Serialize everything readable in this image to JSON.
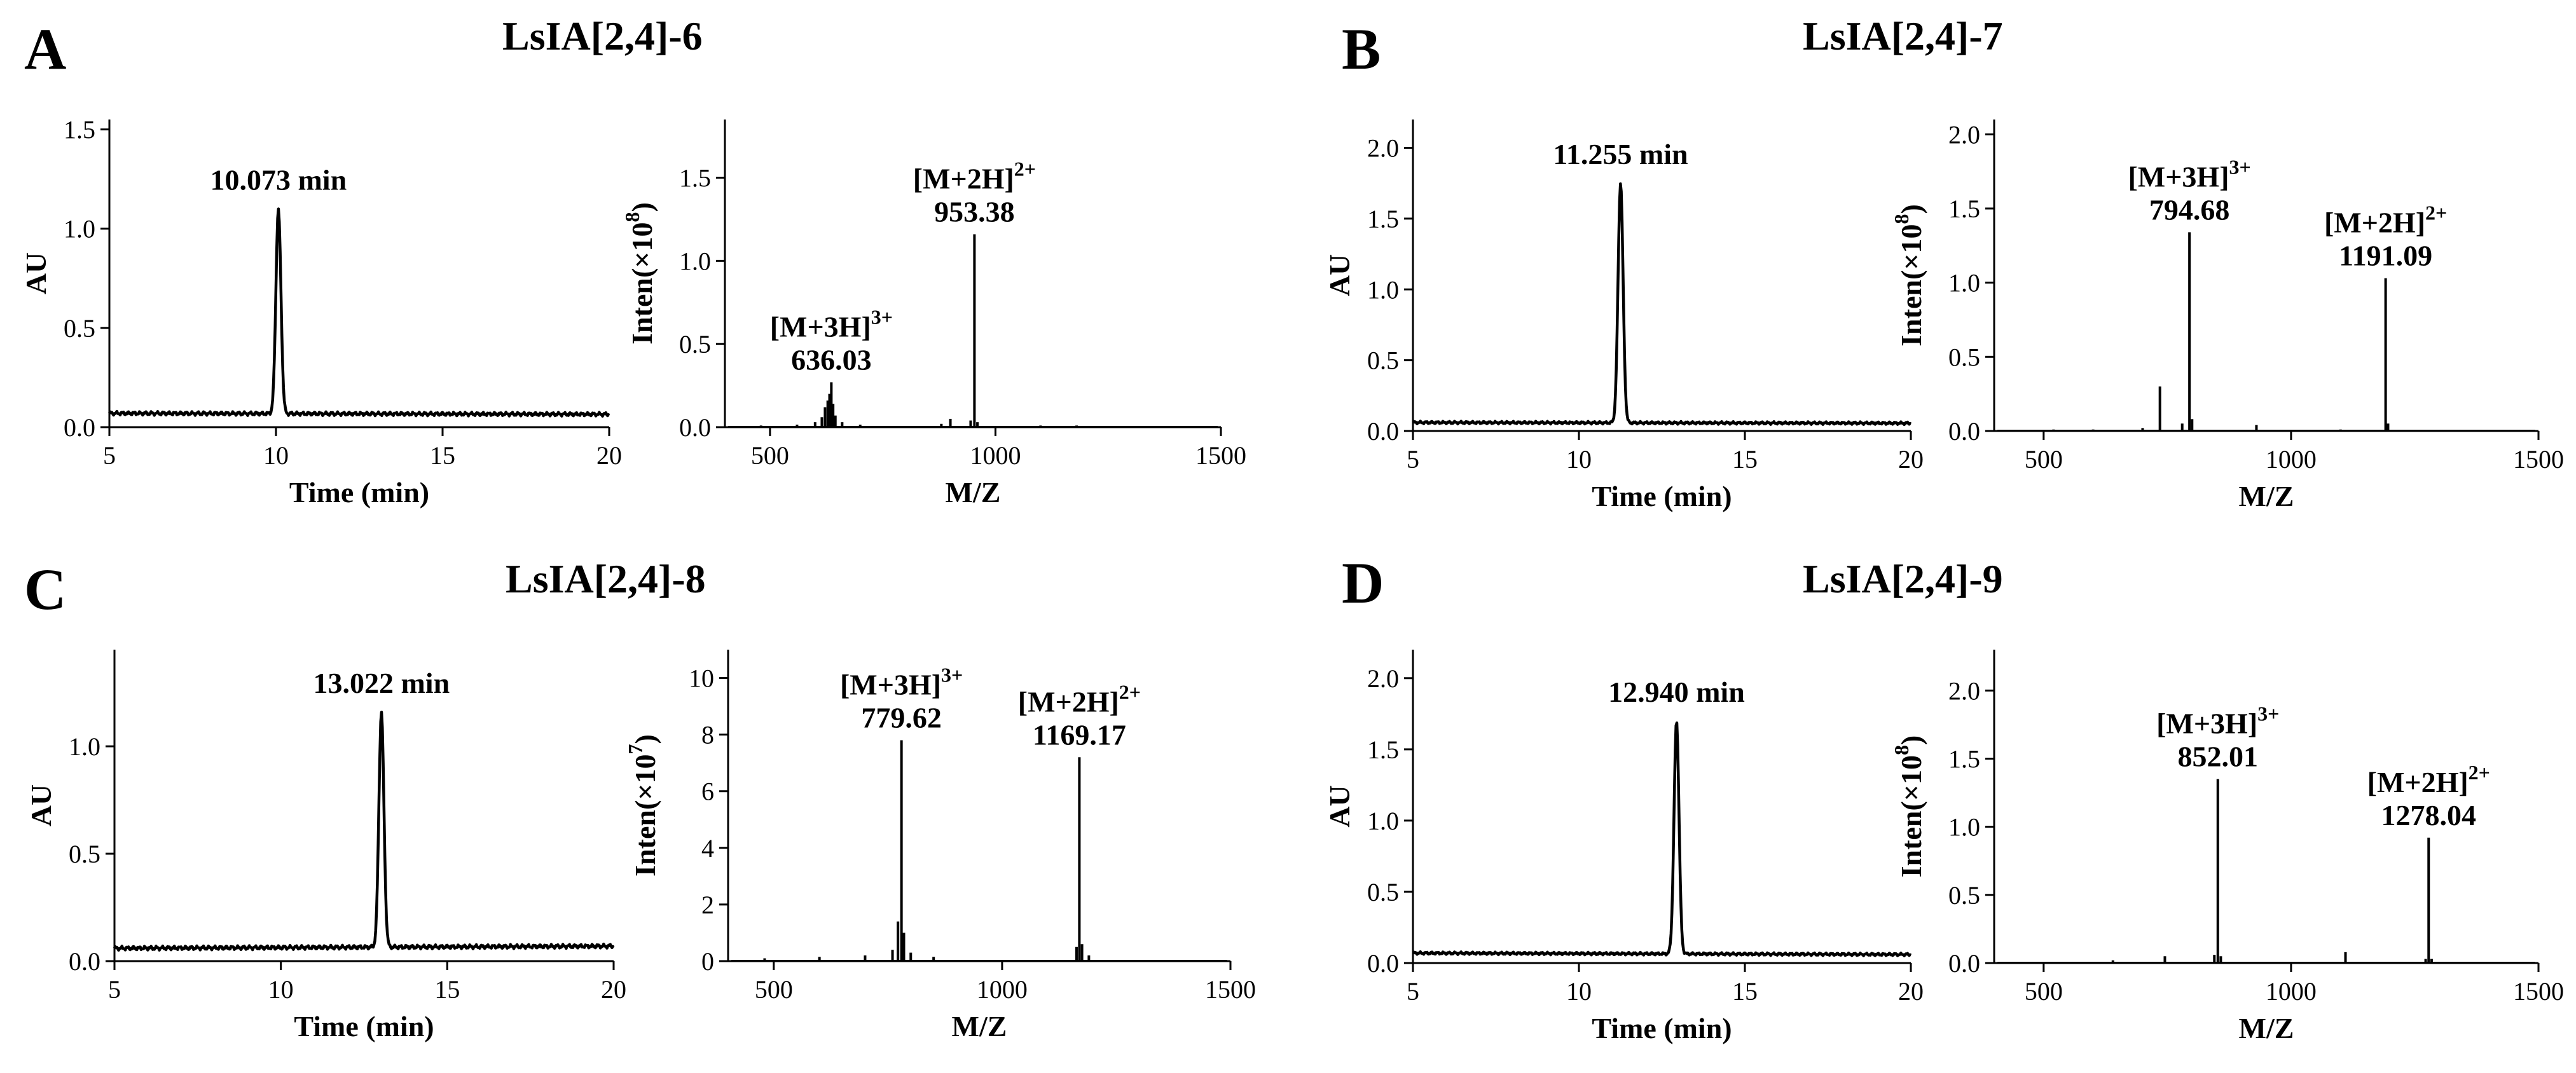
{
  "chart_data": [
    {
      "panel": "A",
      "title": "LsIA[2,4]-6",
      "hplc": {
        "type": "line",
        "xlabel": "Time (min)",
        "ylabel": "AU",
        "xlim": [
          5,
          20
        ],
        "ylim": [
          0,
          1.55
        ],
        "xticks": [
          5,
          10,
          15,
          20
        ],
        "yticks": [
          0.0,
          0.5,
          1.0,
          1.5
        ],
        "xtick_labels": [
          "5",
          "10",
          "15",
          "20"
        ],
        "ytick_labels": [
          "0.0",
          "0.5",
          "1.0",
          "1.5"
        ],
        "baseline_start": 0.07,
        "baseline_end": 0.065,
        "peak_time": 10.073,
        "peak_height": 1.1,
        "peak_label": "10.073 min"
      },
      "ms": {
        "type": "bar",
        "xlabel": "M/Z",
        "ylabel": "Inten(×10",
        "ylabel_exp": "8",
        "ylabel_close": ")",
        "xlim": [
          400,
          1500
        ],
        "ylim": [
          0,
          1.85
        ],
        "xticks": [
          500,
          1000,
          1500
        ],
        "yticks": [
          0.0,
          0.5,
          1.0,
          1.5
        ],
        "xtick_labels": [
          "500",
          "1000",
          "1500"
        ],
        "ytick_labels": [
          "0.0",
          "0.5",
          "1.0",
          "1.5"
        ],
        "peaks": [
          {
            "mz": 480,
            "h": 0.01
          },
          {
            "mz": 560,
            "h": 0.015
          },
          {
            "mz": 600,
            "h": 0.03
          },
          {
            "mz": 615,
            "h": 0.06
          },
          {
            "mz": 622,
            "h": 0.12
          },
          {
            "mz": 628,
            "h": 0.16
          },
          {
            "mz": 632,
            "h": 0.2
          },
          {
            "mz": 636.03,
            "h": 0.27
          },
          {
            "mz": 640,
            "h": 0.14
          },
          {
            "mz": 645,
            "h": 0.07
          },
          {
            "mz": 660,
            "h": 0.03
          },
          {
            "mz": 700,
            "h": 0.015
          },
          {
            "mz": 880,
            "h": 0.02
          },
          {
            "mz": 900,
            "h": 0.05
          },
          {
            "mz": 945,
            "h": 0.04
          },
          {
            "mz": 953.38,
            "h": 1.16
          },
          {
            "mz": 960,
            "h": 0.03
          },
          {
            "mz": 1100,
            "h": 0.01
          },
          {
            "mz": 1180,
            "h": 0.01
          }
        ],
        "annotations": [
          {
            "ion": "[M+3H]",
            "charge": "3+",
            "mz": "636.03",
            "at_mz": 636.03,
            "at_h": 0.27
          },
          {
            "ion": "[M+2H]",
            "charge": "2+",
            "mz": "953.38",
            "at_mz": 953.38,
            "at_h": 1.16
          }
        ]
      }
    },
    {
      "panel": "B",
      "title": "LsIA[2,4]-7",
      "hplc": {
        "type": "line",
        "xlabel": "Time (min)",
        "ylabel": "AU",
        "xlim": [
          5,
          20
        ],
        "ylim": [
          0,
          2.2
        ],
        "xticks": [
          5,
          10,
          15,
          20
        ],
        "yticks": [
          0.0,
          0.5,
          1.0,
          1.5,
          2.0
        ],
        "xtick_labels": [
          "5",
          "10",
          "15",
          "20"
        ],
        "ytick_labels": [
          "0.0",
          "0.5",
          "1.0",
          "1.5",
          "2.0"
        ],
        "baseline_start": 0.06,
        "baseline_end": 0.055,
        "peak_time": 11.255,
        "peak_height": 1.75,
        "peak_label": "11.255 min"
      },
      "ms": {
        "type": "bar",
        "xlabel": "M/Z",
        "ylabel": "Inten(×10",
        "ylabel_exp": "8",
        "ylabel_close": ")",
        "xlim": [
          400,
          1500
        ],
        "ylim": [
          0,
          2.1
        ],
        "xticks": [
          500,
          1000,
          1500
        ],
        "yticks": [
          0.0,
          0.5,
          1.0,
          1.5,
          2.0
        ],
        "xtick_labels": [
          "500",
          "1000",
          "1500"
        ],
        "ytick_labels": [
          "0.0",
          "0.5",
          "1.0",
          "1.5",
          "2.0"
        ],
        "peaks": [
          {
            "mz": 520,
            "h": 0.01
          },
          {
            "mz": 600,
            "h": 0.01
          },
          {
            "mz": 700,
            "h": 0.02
          },
          {
            "mz": 735,
            "h": 0.3
          },
          {
            "mz": 780,
            "h": 0.05
          },
          {
            "mz": 794.68,
            "h": 1.34
          },
          {
            "mz": 800,
            "h": 0.08
          },
          {
            "mz": 930,
            "h": 0.04
          },
          {
            "mz": 1100,
            "h": 0.01
          },
          {
            "mz": 1191.09,
            "h": 1.03
          },
          {
            "mz": 1196,
            "h": 0.05
          }
        ],
        "annotations": [
          {
            "ion": "[M+3H]",
            "charge": "3+",
            "mz": "794.68",
            "at_mz": 794.68,
            "at_h": 1.34
          },
          {
            "ion": "[M+2H]",
            "charge": "2+",
            "mz": "1191.09",
            "at_mz": 1191.09,
            "at_h": 1.03
          }
        ]
      }
    },
    {
      "panel": "C",
      "title": "LsIA[2,4]-8",
      "hplc": {
        "type": "line",
        "xlabel": "Time (min)",
        "ylabel": "AU",
        "xlim": [
          5,
          20
        ],
        "ylim": [
          0,
          1.45
        ],
        "xticks": [
          5,
          10,
          15,
          20
        ],
        "yticks": [
          0.0,
          0.5,
          1.0
        ],
        "xtick_labels": [
          "5",
          "10",
          "15",
          "20"
        ],
        "ytick_labels": [
          "0.0",
          "0.5",
          "1.0"
        ],
        "baseline_start": 0.06,
        "baseline_end": 0.07,
        "peak_time": 13.022,
        "peak_height": 1.16,
        "peak_label": "13.022 min"
      },
      "ms": {
        "type": "bar",
        "xlabel": "M/Z",
        "ylabel": "Inten(×10",
        "ylabel_exp": "7",
        "ylabel_close": ")",
        "xlim": [
          400,
          1500
        ],
        "ylim": [
          0,
          11
        ],
        "xticks": [
          500,
          1000,
          1500
        ],
        "yticks": [
          0,
          2,
          4,
          6,
          8,
          10
        ],
        "xtick_labels": [
          "500",
          "1000",
          "1500"
        ],
        "ytick_labels": [
          "0",
          "2",
          "4",
          "6",
          "8",
          "10"
        ],
        "peaks": [
          {
            "mz": 480,
            "h": 0.1
          },
          {
            "mz": 600,
            "h": 0.15
          },
          {
            "mz": 700,
            "h": 0.2
          },
          {
            "mz": 760,
            "h": 0.4
          },
          {
            "mz": 772,
            "h": 1.4
          },
          {
            "mz": 779.62,
            "h": 7.8
          },
          {
            "mz": 785,
            "h": 1.0
          },
          {
            "mz": 800,
            "h": 0.3
          },
          {
            "mz": 850,
            "h": 0.15
          },
          {
            "mz": 1163,
            "h": 0.5
          },
          {
            "mz": 1169.17,
            "h": 7.2
          },
          {
            "mz": 1175,
            "h": 0.6
          },
          {
            "mz": 1190,
            "h": 0.2
          }
        ],
        "annotations": [
          {
            "ion": "[M+3H]",
            "charge": "3+",
            "mz": "779.62",
            "at_mz": 779.62,
            "at_h": 7.8
          },
          {
            "ion": "[M+2H]",
            "charge": "2+",
            "mz": "1169.17",
            "at_mz": 1169.17,
            "at_h": 7.2
          }
        ]
      }
    },
    {
      "panel": "D",
      "title": "LsIA[2,4]-9",
      "hplc": {
        "type": "line",
        "xlabel": "Time (min)",
        "ylabel": "AU",
        "xlim": [
          5,
          20
        ],
        "ylim": [
          0,
          2.2
        ],
        "xticks": [
          5,
          10,
          15,
          20
        ],
        "yticks": [
          0.0,
          0.5,
          1.0,
          1.5,
          2.0
        ],
        "xtick_labels": [
          "5",
          "10",
          "15",
          "20"
        ],
        "ytick_labels": [
          "0.0",
          "0.5",
          "1.0",
          "1.5",
          "2.0"
        ],
        "baseline_start": 0.07,
        "baseline_end": 0.06,
        "peak_time": 12.94,
        "peak_height": 1.7,
        "peak_label": "12.940 min"
      },
      "ms": {
        "type": "bar",
        "xlabel": "M/Z",
        "ylabel": "Inten(×10",
        "ylabel_exp": "8",
        "ylabel_close": ")",
        "xlim": [
          400,
          1500
        ],
        "ylim": [
          0,
          2.3
        ],
        "xticks": [
          500,
          1000,
          1500
        ],
        "yticks": [
          0.0,
          0.5,
          1.0,
          1.5,
          2.0
        ],
        "xtick_labels": [
          "500",
          "1000",
          "1500"
        ],
        "ytick_labels": [
          "0.0",
          "0.5",
          "1.0",
          "1.5",
          "2.0"
        ],
        "peaks": [
          {
            "mz": 640,
            "h": 0.02
          },
          {
            "mz": 745,
            "h": 0.05
          },
          {
            "mz": 845,
            "h": 0.06
          },
          {
            "mz": 852.01,
            "h": 1.35
          },
          {
            "mz": 858,
            "h": 0.05
          },
          {
            "mz": 1110,
            "h": 0.08
          },
          {
            "mz": 1272,
            "h": 0.03
          },
          {
            "mz": 1278.04,
            "h": 0.92
          },
          {
            "mz": 1284,
            "h": 0.03
          }
        ],
        "annotations": [
          {
            "ion": "[M+3H]",
            "charge": "3+",
            "mz": "852.01",
            "at_mz": 852.01,
            "at_h": 1.35
          },
          {
            "ion": "[M+2H]",
            "charge": "2+",
            "mz": "1278.04",
            "at_mz": 1278.04,
            "at_h": 0.92
          }
        ]
      }
    }
  ]
}
